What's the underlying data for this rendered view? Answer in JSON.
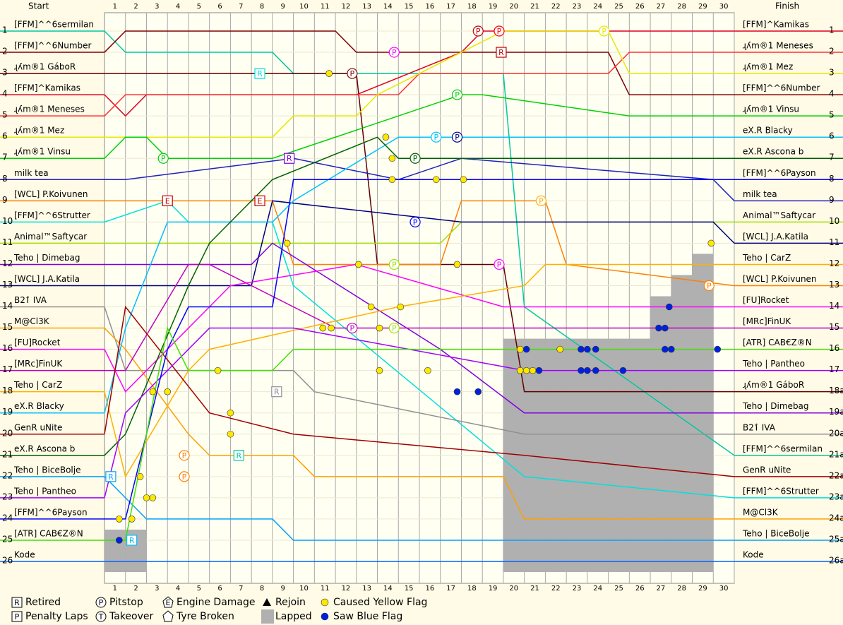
{
  "chart_data": {
    "type": "lapchart",
    "start_header": "Start",
    "finish_header": "Finish",
    "xlim": [
      0,
      30
    ],
    "ylim": [
      1,
      26
    ],
    "laps": [
      1,
      2,
      3,
      4,
      5,
      6,
      7,
      8,
      9,
      10,
      11,
      12,
      13,
      14,
      15,
      16,
      17,
      18,
      19,
      20,
      21,
      22,
      23,
      24,
      25,
      26,
      27,
      28,
      29,
      30
    ],
    "start_positions": [
      1,
      2,
      3,
      4,
      5,
      6,
      7,
      8,
      9,
      10,
      11,
      12,
      13,
      14,
      15,
      16,
      17,
      18,
      19,
      20,
      21,
      22,
      23,
      24,
      25,
      26
    ],
    "finish_labels": [
      "1",
      "2",
      "3",
      "4",
      "5",
      "6",
      "7",
      "8",
      "9",
      "10",
      "11",
      "12",
      "13",
      "14",
      "15",
      "16",
      "17",
      "18a",
      "19a",
      "20a",
      "21a",
      "22a",
      "23a",
      "24a",
      "25a",
      "26a"
    ],
    "series": [
      {
        "name": "[FFM]^^6sermilan",
        "color": "#00c8a0",
        "x": [
          0,
          1,
          8,
          9,
          19,
          20,
          30
        ],
        "values": [
          1,
          2,
          2,
          3,
          3,
          14,
          21
        ]
      },
      {
        "name": "[FFM]^^6Number",
        "color": "#800000",
        "x": [
          0,
          1,
          11,
          12,
          19,
          24,
          25,
          30
        ],
        "values": [
          2,
          1,
          1,
          2,
          2,
          2,
          4,
          4
        ]
      },
      {
        "name": "ɻʎm®1 GáboR",
        "color": "#600000",
        "x": [
          0,
          1,
          12,
          13,
          19,
          20,
          30
        ],
        "values": [
          3,
          3,
          3,
          12,
          12,
          18,
          18
        ]
      },
      {
        "name": "[FFM]^Kamikas",
        "color": "#e00020",
        "x": [
          0,
          1,
          2,
          3,
          11,
          12,
          17,
          18,
          24,
          30
        ],
        "values": [
          4,
          5,
          4,
          4,
          4,
          4,
          2,
          1,
          1,
          1
        ]
      },
      {
        "name": "ɻʎm®1 Meneses",
        "color": "#ff3030",
        "x": [
          0,
          1,
          14,
          15,
          24,
          25,
          30
        ],
        "values": [
          5,
          4,
          4,
          3,
          3,
          2,
          2
        ]
      },
      {
        "name": "ɻʎm®1 Mez",
        "color": "#e8e800",
        "x": [
          0,
          1,
          8,
          9,
          12,
          13,
          19,
          24,
          25,
          30
        ],
        "values": [
          6,
          6,
          6,
          5,
          5,
          4,
          1,
          1,
          3,
          3
        ]
      },
      {
        "name": "ɻʎm®1 Vinsu",
        "color": "#00d000",
        "x": [
          0,
          1,
          2,
          3,
          8,
          17,
          18,
          25,
          30
        ],
        "values": [
          7,
          6,
          6,
          7,
          7,
          4,
          4,
          5,
          5
        ]
      },
      {
        "name": "milk tea",
        "color": "#2020c0",
        "x": [
          0,
          1,
          9,
          14,
          17,
          29,
          30
        ],
        "values": [
          8,
          8,
          7,
          8,
          7,
          8,
          9
        ]
      },
      {
        "name": "[WCL] P.Koivunen",
        "color": "#ff8000",
        "x": [
          0,
          4,
          8,
          9,
          16,
          17,
          21,
          22,
          30
        ],
        "values": [
          9,
          9,
          9,
          12,
          12,
          9,
          9,
          12,
          13
        ]
      },
      {
        "name": "[FFM]^^6Strutter",
        "color": "#00e0e0",
        "x": [
          0,
          3,
          4,
          8,
          9,
          20,
          30
        ],
        "values": [
          10,
          9,
          10,
          10,
          13,
          22,
          23
        ]
      },
      {
        "name": "Animal™Saftycar",
        "color": "#a0e000",
        "x": [
          0,
          1,
          8,
          11,
          16,
          17,
          29,
          30
        ],
        "values": [
          11,
          11,
          11,
          11,
          11,
          10,
          10,
          10
        ]
      },
      {
        "name": "Teho | Dimebag",
        "color": "#8000e0",
        "x": [
          0,
          1,
          7,
          8,
          16,
          20,
          30
        ],
        "values": [
          12,
          12,
          12,
          11,
          16,
          19,
          19
        ]
      },
      {
        "name": "[WCL] J.A.Katila",
        "color": "#000080",
        "x": [
          0,
          1,
          7,
          8,
          17,
          29,
          30
        ],
        "values": [
          13,
          13,
          13,
          9,
          10,
          10,
          11
        ]
      },
      {
        "name": "B2ٲ IVA",
        "color": "#909090",
        "x": [
          0,
          1,
          9,
          10,
          20,
          30
        ],
        "values": [
          14,
          17,
          17,
          18,
          20,
          20
        ]
      },
      {
        "name": "M@Cl3K",
        "color": "#ffa000",
        "x": [
          0,
          1,
          4,
          5,
          9,
          10,
          19,
          20,
          30
        ],
        "values": [
          15,
          16,
          20,
          21,
          21,
          22,
          22,
          24,
          24
        ]
      },
      {
        "name": "[FU]Rocket",
        "color": "#ff00ff",
        "x": [
          0,
          1,
          5,
          6,
          12,
          19,
          20,
          30
        ],
        "values": [
          16,
          18,
          14,
          13,
          12,
          14,
          14,
          14
        ]
      },
      {
        "name": "[MRc]FinUK",
        "color": "#c000c0",
        "x": [
          0,
          1,
          4,
          5,
          11,
          13,
          19,
          20,
          30
        ],
        "values": [
          17,
          17,
          12,
          12,
          15,
          15,
          15,
          15,
          15
        ]
      },
      {
        "name": "Teho | CarZ",
        "color": "#ffb000",
        "x": [
          0,
          1,
          4,
          5,
          14,
          20,
          21,
          30
        ],
        "values": [
          18,
          22,
          17,
          16,
          14,
          13,
          12,
          12
        ]
      },
      {
        "name": "eX.R Blacky",
        "color": "#00c0ff",
        "x": [
          0,
          1,
          3,
          4,
          8,
          9,
          14,
          16,
          17,
          19,
          30
        ],
        "values": [
          19,
          15,
          10,
          10,
          10,
          9,
          6,
          6,
          6,
          6,
          6
        ]
      },
      {
        "name": "GenR uNite",
        "color": "#a00000",
        "x": [
          0,
          1,
          5,
          9,
          20,
          30
        ],
        "values": [
          20,
          14,
          19,
          20,
          21,
          22
        ]
      },
      {
        "name": "eX.R Ascona b",
        "color": "#006000",
        "x": [
          0,
          1,
          4,
          5,
          8,
          13,
          14,
          30
        ],
        "values": [
          21,
          20,
          13,
          11,
          8,
          6,
          7,
          7
        ]
      },
      {
        "name": "Teho | BiceBolje",
        "color": "#00a0ff",
        "x": [
          0,
          1,
          2,
          3,
          8,
          9,
          20,
          30
        ],
        "values": [
          22,
          23,
          24,
          24,
          24,
          25,
          25,
          25
        ]
      },
      {
        "name": "Teho | Pantheo",
        "color": "#a000ff",
        "x": [
          0,
          1,
          5,
          6,
          9,
          20,
          21,
          30
        ],
        "values": [
          23,
          19,
          15,
          15,
          15,
          17,
          17,
          17
        ]
      },
      {
        "name": "[FFM]^^6Payson",
        "color": "#0000ff",
        "x": [
          0,
          1,
          3,
          4,
          8,
          9,
          17,
          30
        ],
        "values": [
          24,
          24,
          16,
          14,
          14,
          8,
          8,
          8
        ]
      },
      {
        "name": "[ATR] CAB€Z®N",
        "color": "#40e000",
        "x": [
          0,
          1,
          3,
          4,
          8,
          9,
          20,
          30
        ],
        "values": [
          25,
          25,
          15,
          17,
          17,
          16,
          16,
          16
        ]
      },
      {
        "name": "Kode",
        "color": "#0060ff",
        "x": [
          0,
          1,
          2,
          30
        ],
        "values": [
          26,
          26,
          26,
          26
        ]
      }
    ],
    "lapped": {
      "laps": [
        1,
        2,
        20,
        21,
        22,
        23,
        24,
        25,
        26,
        27,
        28,
        29
      ],
      "values": [
        2,
        2,
        11,
        11,
        11,
        11,
        11,
        11,
        11,
        13,
        14,
        15
      ]
    },
    "events": [
      {
        "type": "pitstop",
        "symbol": "P",
        "lap": 17.8,
        "position": 1,
        "color": "#c00000"
      },
      {
        "type": "pitstop",
        "symbol": "P",
        "lap": 18.8,
        "position": 1,
        "color": "#ff0000"
      },
      {
        "type": "pitstop",
        "symbol": "P",
        "lap": 23.8,
        "position": 1,
        "color": "#e8e800"
      },
      {
        "type": "pitstop",
        "symbol": "P",
        "lap": 13.8,
        "position": 2,
        "color": "#ff00ff"
      },
      {
        "type": "pitstop",
        "symbol": "P",
        "lap": 11.8,
        "position": 3,
        "color": "#800000"
      },
      {
        "type": "pitstop",
        "symbol": "P",
        "lap": 16.8,
        "position": 4,
        "color": "#00d000"
      },
      {
        "type": "pitstop",
        "symbol": "P",
        "lap": 15.8,
        "position": 6,
        "color": "#00c0ff"
      },
      {
        "type": "pitstop",
        "symbol": "P",
        "lap": 16.8,
        "position": 6,
        "color": "#000080"
      },
      {
        "type": "pitstop",
        "symbol": "P",
        "lap": 2.8,
        "position": 7,
        "color": "#00d000"
      },
      {
        "type": "pitstop",
        "symbol": "P",
        "lap": 14.8,
        "position": 7,
        "color": "#006000"
      },
      {
        "type": "pitstop",
        "symbol": "P",
        "lap": 20.8,
        "position": 9,
        "color": "#ffb000"
      },
      {
        "type": "pitstop",
        "symbol": "P",
        "lap": 14.8,
        "position": 10,
        "color": "#0000ff"
      },
      {
        "type": "pitstop",
        "symbol": "P",
        "lap": 13.8,
        "position": 12,
        "color": "#a0e000"
      },
      {
        "type": "pitstop",
        "symbol": "P",
        "lap": 18.8,
        "position": 12,
        "color": "#ff00ff"
      },
      {
        "type": "pitstop",
        "symbol": "P",
        "lap": 28.8,
        "position": 13,
        "color": "#ff8000"
      },
      {
        "type": "pitstop",
        "symbol": "P",
        "lap": 11.8,
        "position": 15,
        "color": "#c000c0"
      },
      {
        "type": "pitstop",
        "symbol": "P",
        "lap": 13.8,
        "position": 15,
        "color": "#a0e000"
      },
      {
        "type": "pitstop",
        "symbol": "P",
        "lap": 3.8,
        "position": 21,
        "color": "#ff8000"
      },
      {
        "type": "pitstop",
        "symbol": "P",
        "lap": 3.8,
        "position": 22,
        "color": "#ff8000"
      },
      {
        "type": "retired",
        "symbol": "R",
        "lap": 18.9,
        "position": 2,
        "color": "#c00000"
      },
      {
        "type": "retired",
        "symbol": "R",
        "lap": 7.4,
        "position": 3,
        "color": "#00e0e0"
      },
      {
        "type": "retired",
        "symbol": "R",
        "lap": 8.8,
        "position": 7,
        "color": "#8000e0"
      },
      {
        "type": "retired",
        "symbol": "R",
        "lap": 8.2,
        "position": 18,
        "color": "#909090"
      },
      {
        "type": "retired",
        "symbol": "R",
        "lap": 6.4,
        "position": 21,
        "color": "#00c8a0"
      },
      {
        "type": "retired",
        "symbol": "R",
        "lap": 0.3,
        "position": 22,
        "color": "#00a0ff"
      },
      {
        "type": "retired",
        "symbol": "R",
        "lap": 1.3,
        "position": 25,
        "color": "#00c0ff"
      },
      {
        "type": "engine",
        "symbol": "E",
        "lap": 3,
        "position": 9,
        "color": "#c00000"
      },
      {
        "type": "engine",
        "symbol": "E",
        "lap": 7.4,
        "position": 9,
        "color": "#c00000"
      },
      {
        "type": "yellow",
        "lap": 10.7,
        "position": 3
      },
      {
        "type": "yellow",
        "lap": 12.1,
        "position": 12
      },
      {
        "type": "yellow",
        "lap": 8.7,
        "position": 11
      },
      {
        "type": "yellow",
        "lap": 13.4,
        "position": 6
      },
      {
        "type": "yellow",
        "lap": 13.7,
        "position": 7
      },
      {
        "type": "yellow",
        "lap": 13.7,
        "position": 8
      },
      {
        "type": "yellow",
        "lap": 17.1,
        "position": 8
      },
      {
        "type": "yellow",
        "lap": 15.8,
        "position": 8
      },
      {
        "type": "yellow",
        "lap": 16.8,
        "position": 12
      },
      {
        "type": "yellow",
        "lap": 12.7,
        "position": 14
      },
      {
        "type": "yellow",
        "lap": 14.1,
        "position": 14
      },
      {
        "type": "yellow",
        "lap": 10.4,
        "position": 15
      },
      {
        "type": "yellow",
        "lap": 10.8,
        "position": 15
      },
      {
        "type": "yellow",
        "lap": 13.1,
        "position": 15
      },
      {
        "type": "yellow",
        "lap": 13.1,
        "position": 17
      },
      {
        "type": "yellow",
        "lap": 15.4,
        "position": 17
      },
      {
        "type": "yellow",
        "lap": 28.9,
        "position": 11
      },
      {
        "type": "yellow",
        "lap": 2.3,
        "position": 18
      },
      {
        "type": "yellow",
        "lap": 3,
        "position": 18
      },
      {
        "type": "yellow",
        "lap": 5.4,
        "position": 17
      },
      {
        "type": "yellow",
        "lap": 6,
        "position": 19
      },
      {
        "type": "yellow",
        "lap": 6,
        "position": 20
      },
      {
        "type": "yellow",
        "lap": 1.7,
        "position": 22
      },
      {
        "type": "yellow",
        "lap": 2,
        "position": 23
      },
      {
        "type": "yellow",
        "lap": 2.3,
        "position": 23
      },
      {
        "type": "yellow",
        "lap": 0.7,
        "position": 24
      },
      {
        "type": "yellow",
        "lap": 1.3,
        "position": 24
      },
      {
        "type": "yellow",
        "lap": 19.8,
        "position": 16
      },
      {
        "type": "yellow",
        "lap": 21.7,
        "position": 16
      },
      {
        "type": "yellow",
        "lap": 19.8,
        "position": 17
      },
      {
        "type": "yellow",
        "lap": 20.1,
        "position": 17
      },
      {
        "type": "yellow",
        "lap": 20.4,
        "position": 17
      },
      {
        "type": "blue",
        "lap": 16.8,
        "position": 18
      },
      {
        "type": "blue",
        "lap": 17.8,
        "position": 18
      },
      {
        "type": "blue",
        "lap": 20.1,
        "position": 16
      },
      {
        "type": "blue",
        "lap": 22.7,
        "position": 16
      },
      {
        "type": "blue",
        "lap": 23,
        "position": 16
      },
      {
        "type": "blue",
        "lap": 23.4,
        "position": 16
      },
      {
        "type": "blue",
        "lap": 22.7,
        "position": 17
      },
      {
        "type": "blue",
        "lap": 23,
        "position": 17
      },
      {
        "type": "blue",
        "lap": 23.4,
        "position": 17
      },
      {
        "type": "blue",
        "lap": 24.7,
        "position": 17
      },
      {
        "type": "blue",
        "lap": 26.4,
        "position": 15
      },
      {
        "type": "blue",
        "lap": 26.7,
        "position": 15
      },
      {
        "type": "blue",
        "lap": 26.7,
        "position": 16
      },
      {
        "type": "blue",
        "lap": 27,
        "position": 16
      },
      {
        "type": "blue",
        "lap": 26.9,
        "position": 14
      },
      {
        "type": "blue",
        "lap": 29.2,
        "position": 16
      },
      {
        "type": "blue",
        "lap": 0.7,
        "position": 25
      },
      {
        "type": "blue",
        "lap": 20.7,
        "position": 17
      }
    ],
    "legend": [
      {
        "symbol": "R",
        "label": "Retired"
      },
      {
        "symbol": "P",
        "label": "Penalty Laps"
      },
      {
        "symbol": "P",
        "label": "Pitstop"
      },
      {
        "symbol": "T",
        "label": "Takeover"
      },
      {
        "symbol": "E",
        "label": "Engine Damage"
      },
      {
        "label": "Tyre Broken"
      },
      {
        "label": "Rejoin"
      },
      {
        "label": "Lapped"
      },
      {
        "label": "Caused Yellow Flag"
      },
      {
        "label": "Saw Blue Flag"
      }
    ]
  }
}
